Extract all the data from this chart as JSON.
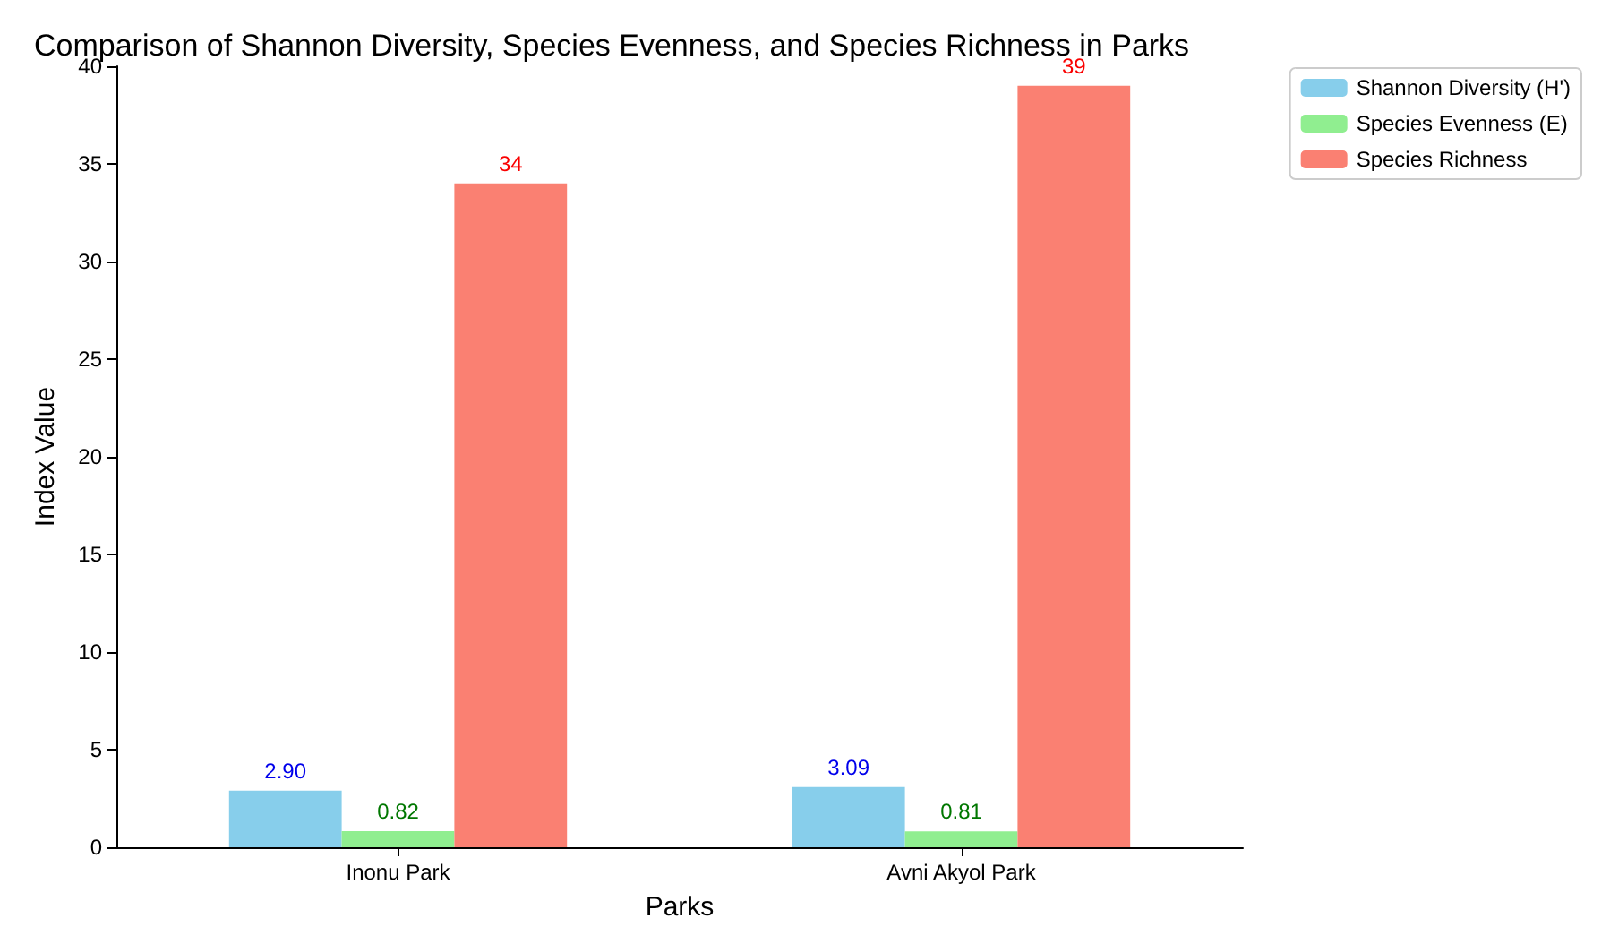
{
  "chart_data": {
    "type": "bar",
    "title": "Comparison of Shannon Diversity, Species Evenness, and Species Richness in Parks",
    "xlabel": "Parks",
    "ylabel": "Index Value",
    "categories": [
      "Inonu Park",
      "Avni Akyol Park"
    ],
    "series": [
      {
        "name": "Shannon Diversity (H')",
        "color": "#87ceeb",
        "values": [
          2.9,
          3.09
        ],
        "value_labels": [
          "2.90",
          "3.09"
        ]
      },
      {
        "name": "Species Evenness (E)",
        "color": "#90ee90",
        "values": [
          0.82,
          0.81
        ],
        "value_labels": [
          "0.82",
          "0.81"
        ]
      },
      {
        "name": "Species Richness",
        "color": "#fa8072",
        "values": [
          34,
          39
        ],
        "value_labels": [
          "34",
          "39"
        ]
      }
    ],
    "ylim": [
      0,
      40
    ],
    "yticks": [
      0,
      5,
      10,
      15,
      20,
      25,
      30,
      35,
      40
    ],
    "legend": "top right"
  }
}
